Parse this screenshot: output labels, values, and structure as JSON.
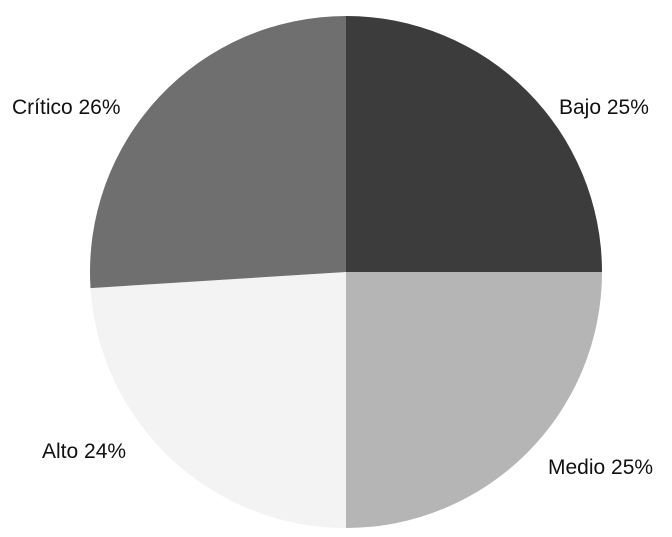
{
  "chart_data": {
    "type": "pie",
    "start_angle_deg": 0,
    "direction": "clockwise",
    "legend": "none",
    "slices": [
      {
        "label": "Bajo",
        "value": 25,
        "display": "Bajo 25%",
        "color": "#3c3c3c"
      },
      {
        "label": "Medio",
        "value": 25,
        "display": "Medio 25%",
        "color": "#b5b5b5"
      },
      {
        "label": "Alto",
        "value": 24,
        "display": "Alto 24%",
        "color": "#f3f3f3"
      },
      {
        "label": "Crítico",
        "value": 26,
        "display": "Crítico 26%",
        "color": "#6f6f6f"
      }
    ]
  }
}
